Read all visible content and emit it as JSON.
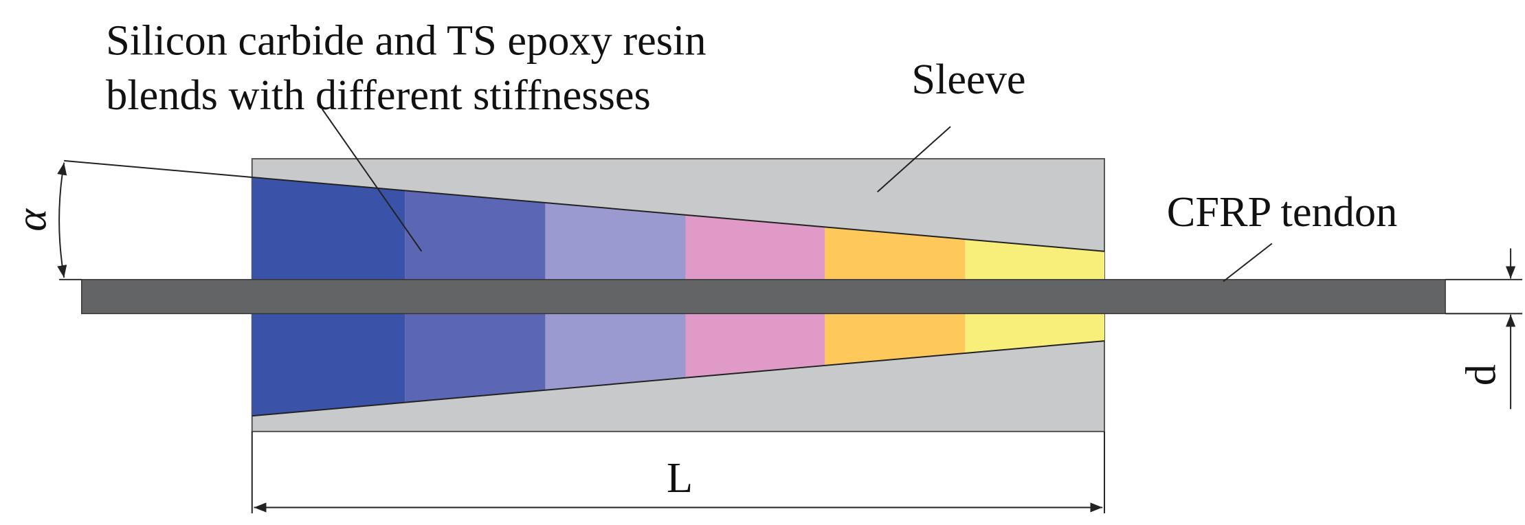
{
  "labels": {
    "material": [
      "Silicon carbide and TS epoxy resin",
      "blends with different stiffnesses"
    ],
    "sleeve": "Sleeve",
    "tendon": "CFRP tendon",
    "angle": "α",
    "length": "L",
    "diameter": "d"
  }
}
